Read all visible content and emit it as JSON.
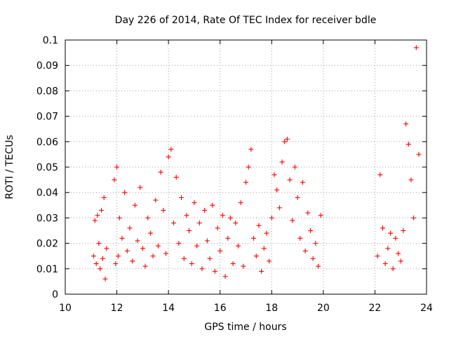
{
  "chart_data": {
    "type": "scatter",
    "title": "Day 226 of 2014, Rate Of TEC Index for receiver bdle",
    "xlabel": "GPS time / hours",
    "ylabel": "ROTI / TECUs",
    "xlim": [
      10,
      24
    ],
    "ylim": [
      0,
      0.1
    ],
    "grid": true,
    "marker": "+",
    "color": "#ff0000",
    "x_ticks": [
      "10",
      "12",
      "14",
      "16",
      "18",
      "20",
      "22",
      "24"
    ],
    "y_ticks": [
      "0",
      "0.01",
      "0.02",
      "0.03",
      "0.04",
      "0.05",
      "0.06",
      "0.07",
      "0.08",
      "0.09",
      "0.1"
    ],
    "x_tick_values": [
      10,
      12,
      14,
      16,
      18,
      20,
      22,
      24
    ],
    "y_tick_values": [
      0,
      0.01,
      0.02,
      0.03,
      0.04,
      0.05,
      0.06,
      0.07,
      0.08,
      0.09,
      0.1
    ],
    "series": [
      {
        "name": "ROTI",
        "x": [
          11.1,
          11.15,
          11.2,
          11.25,
          11.3,
          11.35,
          11.4,
          11.45,
          11.5,
          11.55,
          11.6,
          11.9,
          11.95,
          12.0,
          12.05,
          12.1,
          12.2,
          12.3,
          12.4,
          12.5,
          12.6,
          12.7,
          12.8,
          12.9,
          13.0,
          13.1,
          13.2,
          13.3,
          13.4,
          13.5,
          13.6,
          13.7,
          13.8,
          13.9,
          14.0,
          14.1,
          14.2,
          14.3,
          14.4,
          14.5,
          14.6,
          14.7,
          14.8,
          14.9,
          15.0,
          15.1,
          15.2,
          15.3,
          15.4,
          15.5,
          15.6,
          15.7,
          15.8,
          15.9,
          16.0,
          16.1,
          16.2,
          16.3,
          16.4,
          16.5,
          16.6,
          16.7,
          16.8,
          16.9,
          17.0,
          17.1,
          17.2,
          17.3,
          17.4,
          17.5,
          17.6,
          17.7,
          17.8,
          17.9,
          18.0,
          18.1,
          18.2,
          18.3,
          18.4,
          18.5,
          18.6,
          18.7,
          18.8,
          18.9,
          19.0,
          19.1,
          19.2,
          19.3,
          19.4,
          19.5,
          19.6,
          19.7,
          19.8,
          19.9,
          22.1,
          22.2,
          22.3,
          22.4,
          22.5,
          22.6,
          22.7,
          22.8,
          22.9,
          23.0,
          23.1,
          23.2,
          23.3,
          23.4,
          23.5,
          23.6,
          23.7
        ],
        "y": [
          0.015,
          0.029,
          0.012,
          0.031,
          0.02,
          0.01,
          0.033,
          0.014,
          0.038,
          0.006,
          0.018,
          0.045,
          0.012,
          0.05,
          0.015,
          0.03,
          0.022,
          0.04,
          0.017,
          0.026,
          0.013,
          0.035,
          0.021,
          0.042,
          0.018,
          0.011,
          0.03,
          0.024,
          0.015,
          0.037,
          0.019,
          0.048,
          0.033,
          0.016,
          0.054,
          0.057,
          0.028,
          0.046,
          0.02,
          0.038,
          0.014,
          0.031,
          0.025,
          0.012,
          0.036,
          0.019,
          0.028,
          0.01,
          0.033,
          0.021,
          0.014,
          0.035,
          0.009,
          0.026,
          0.017,
          0.031,
          0.007,
          0.022,
          0.03,
          0.012,
          0.028,
          0.019,
          0.036,
          0.011,
          0.044,
          0.05,
          0.057,
          0.022,
          0.015,
          0.027,
          0.009,
          0.018,
          0.024,
          0.013,
          0.03,
          0.047,
          0.041,
          0.034,
          0.052,
          0.06,
          0.061,
          0.045,
          0.029,
          0.05,
          0.038,
          0.022,
          0.044,
          0.017,
          0.032,
          0.025,
          0.014,
          0.02,
          0.011,
          0.031,
          0.015,
          0.047,
          0.026,
          0.012,
          0.018,
          0.024,
          0.01,
          0.022,
          0.016,
          0.013,
          0.025,
          0.067,
          0.059,
          0.045,
          0.03,
          0.097,
          0.055
        ]
      }
    ]
  }
}
